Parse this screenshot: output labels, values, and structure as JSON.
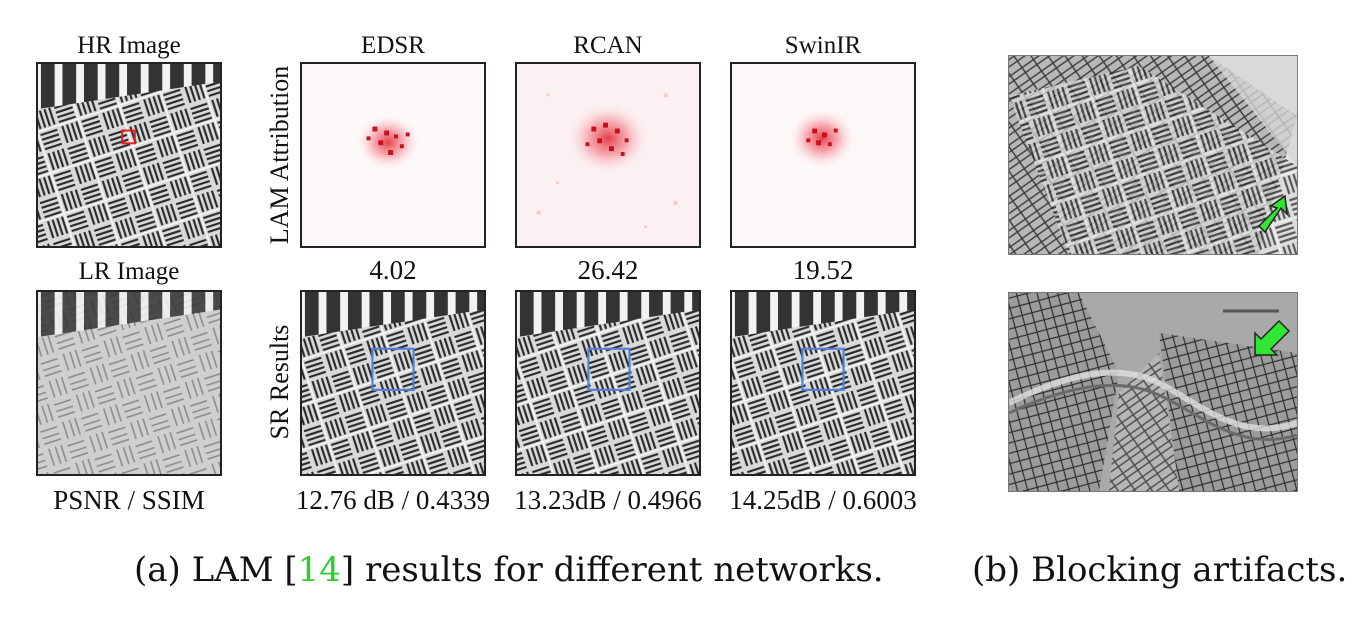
{
  "column_labels": {
    "hr": "HR Image",
    "edsr": "EDSR",
    "rcan": "RCAN",
    "swinir": "SwinIR",
    "lr": "LR Image"
  },
  "row_labels": {
    "lam": "LAM Attribution",
    "sr": "SR Results"
  },
  "lam_scores": {
    "edsr": "4.02",
    "rcan": "26.42",
    "swinir": "19.52"
  },
  "metrics": {
    "header": "PSNR / SSIM",
    "edsr": "12.76 dB / 0.4339",
    "rcan": "13.23dB / 0.4966",
    "swinir": "14.25dB / 0.6003"
  },
  "captions": {
    "a_prefix": "(a) LAM [",
    "a_ref": "14",
    "a_suffix": "] results for different networks.",
    "b": "(b) Blocking artifacts."
  },
  "colors": {
    "attribution": "#e0202a",
    "roi_box_hr": "#e02020",
    "roi_box_sr": "#4f7fd6",
    "arrow": "#33e633",
    "cite": "#2ecc2e"
  }
}
